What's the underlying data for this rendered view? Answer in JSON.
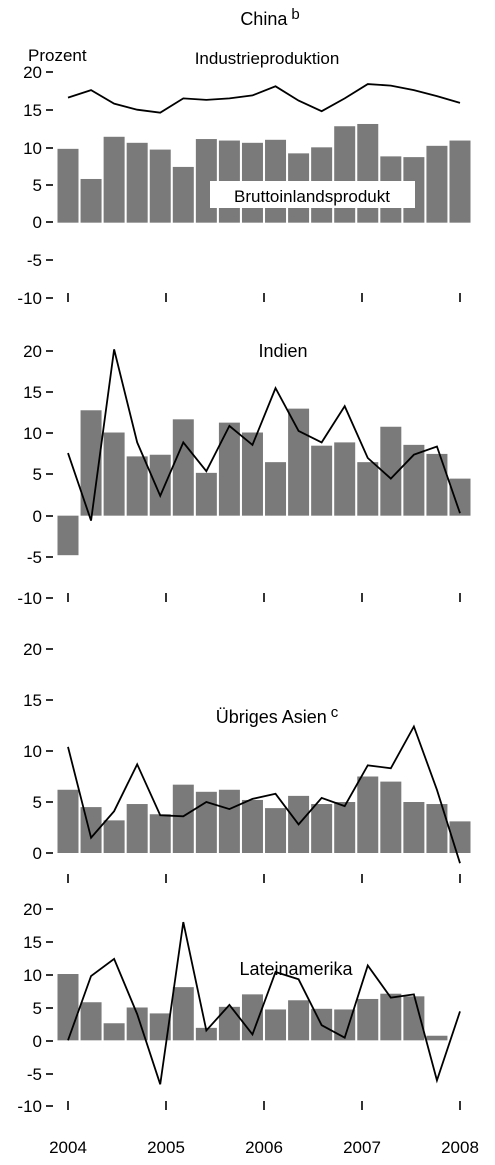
{
  "units_label": "Prozent",
  "x_tick_labels": [
    "2004",
    "2005",
    "2006",
    "2007",
    "2008"
  ],
  "colors": {
    "bar": "#7a7a7a",
    "line": "#000000",
    "axis": "#000000"
  },
  "chart_data": [
    {
      "type": "bar",
      "title": "China",
      "title_superscript": "b",
      "ylabel": "Prozent",
      "ylim": [
        -10,
        20
      ],
      "yticks": [
        20,
        15,
        10,
        5,
        0,
        -5,
        -10
      ],
      "x": [
        "2004Q1",
        "2004Q2",
        "2004Q3",
        "2004Q4",
        "2005Q1",
        "2005Q2",
        "2005Q3",
        "2005Q4",
        "2006Q1",
        "2006Q2",
        "2006Q3",
        "2006Q4",
        "2007Q1",
        "2007Q2",
        "2007Q3",
        "2007Q4",
        "2008Q1",
        "2008Q2"
      ],
      "series": [
        {
          "name": "Bruttoinlandsprodukt",
          "type": "bar",
          "values": [
            9.8,
            5.8,
            11.4,
            10.6,
            9.7,
            7.4,
            11.1,
            10.9,
            10.6,
            11.0,
            9.2,
            10.0,
            12.8,
            13.1,
            8.8,
            8.7,
            10.2,
            10.9
          ]
        },
        {
          "name": "Industrieproduktion",
          "type": "line",
          "values": [
            16.6,
            17.6,
            15.8,
            15.0,
            14.6,
            16.5,
            16.3,
            16.5,
            16.9,
            18.1,
            16.2,
            14.8,
            16.5,
            18.4,
            18.2,
            17.6,
            16.8,
            15.9
          ]
        }
      ]
    },
    {
      "type": "bar",
      "title": "Indien",
      "ylim": [
        -10,
        20
      ],
      "yticks": [
        20,
        15,
        10,
        5,
        0,
        -5,
        -10
      ],
      "x": [
        "2004Q1",
        "2004Q2",
        "2004Q3",
        "2004Q4",
        "2005Q1",
        "2005Q2",
        "2005Q3",
        "2005Q4",
        "2006Q1",
        "2006Q2",
        "2006Q3",
        "2006Q4",
        "2007Q1",
        "2007Q2",
        "2007Q3",
        "2007Q4",
        "2008Q1",
        "2008Q2"
      ],
      "series": [
        {
          "name": "Bruttoinlandsprodukt",
          "type": "bar",
          "values": [
            -4.8,
            12.8,
            10.1,
            7.2,
            7.4,
            11.7,
            5.2,
            11.3,
            10.1,
            6.5,
            13.0,
            8.5,
            8.9,
            6.5,
            10.8,
            8.6,
            7.5,
            4.5
          ]
        },
        {
          "name": "Industrieproduktion",
          "type": "line",
          "values": [
            7.6,
            -0.6,
            20.2,
            8.9,
            2.4,
            8.9,
            5.4,
            10.9,
            8.6,
            15.5,
            10.3,
            8.9,
            13.3,
            7.0,
            4.5,
            7.4,
            8.4,
            0.3
          ]
        }
      ]
    },
    {
      "type": "bar",
      "title": "Übriges Asien",
      "title_superscript": "c",
      "ylim": [
        0,
        20
      ],
      "yticks": [
        20,
        15,
        10,
        5,
        0
      ],
      "x": [
        "2004Q1",
        "2004Q2",
        "2004Q3",
        "2004Q4",
        "2005Q1",
        "2005Q2",
        "2005Q3",
        "2005Q4",
        "2006Q1",
        "2006Q2",
        "2006Q3",
        "2006Q4",
        "2007Q1",
        "2007Q2",
        "2007Q3",
        "2007Q4",
        "2008Q1",
        "2008Q2"
      ],
      "series": [
        {
          "name": "Bruttoinlandsprodukt",
          "type": "bar",
          "values": [
            6.2,
            4.5,
            3.2,
            4.8,
            3.8,
            6.7,
            6.0,
            6.2,
            5.2,
            4.4,
            5.6,
            4.8,
            5.0,
            7.5,
            7.0,
            5.0,
            4.8,
            3.1
          ]
        },
        {
          "name": "Industrieproduktion",
          "type": "line",
          "values": [
            10.4,
            1.5,
            4.1,
            8.7,
            3.7,
            3.6,
            5.0,
            4.3,
            5.3,
            5.8,
            2.8,
            5.4,
            4.6,
            8.6,
            8.3,
            12.4,
            6.2,
            -1.0
          ]
        }
      ]
    },
    {
      "type": "bar",
      "title": "Lateinamerika",
      "ylim": [
        -10,
        20
      ],
      "yticks": [
        20,
        15,
        10,
        5,
        0,
        -5,
        -10
      ],
      "x": [
        "2004Q1",
        "2004Q2",
        "2004Q3",
        "2004Q4",
        "2005Q1",
        "2005Q2",
        "2005Q3",
        "2005Q4",
        "2006Q1",
        "2006Q2",
        "2006Q3",
        "2006Q4",
        "2007Q1",
        "2007Q2",
        "2007Q3",
        "2007Q4",
        "2008Q1",
        "2008Q2"
      ],
      "series": [
        {
          "name": "Bruttoinlandsprodukt",
          "type": "bar",
          "values": [
            10.1,
            5.8,
            2.6,
            5.0,
            4.1,
            8.1,
            1.9,
            5.1,
            7.0,
            4.7,
            6.1,
            4.8,
            4.7,
            6.3,
            7.1,
            6.7,
            0.7,
            0.0
          ]
        },
        {
          "name": "Industrieproduktion",
          "type": "line",
          "values": [
            0.0,
            9.8,
            12.4,
            4.0,
            -6.7,
            18.0,
            1.5,
            5.4,
            0.9,
            10.4,
            9.3,
            2.3,
            0.4,
            11.4,
            6.5,
            7.0,
            -6.1,
            4.4
          ]
        }
      ]
    }
  ]
}
